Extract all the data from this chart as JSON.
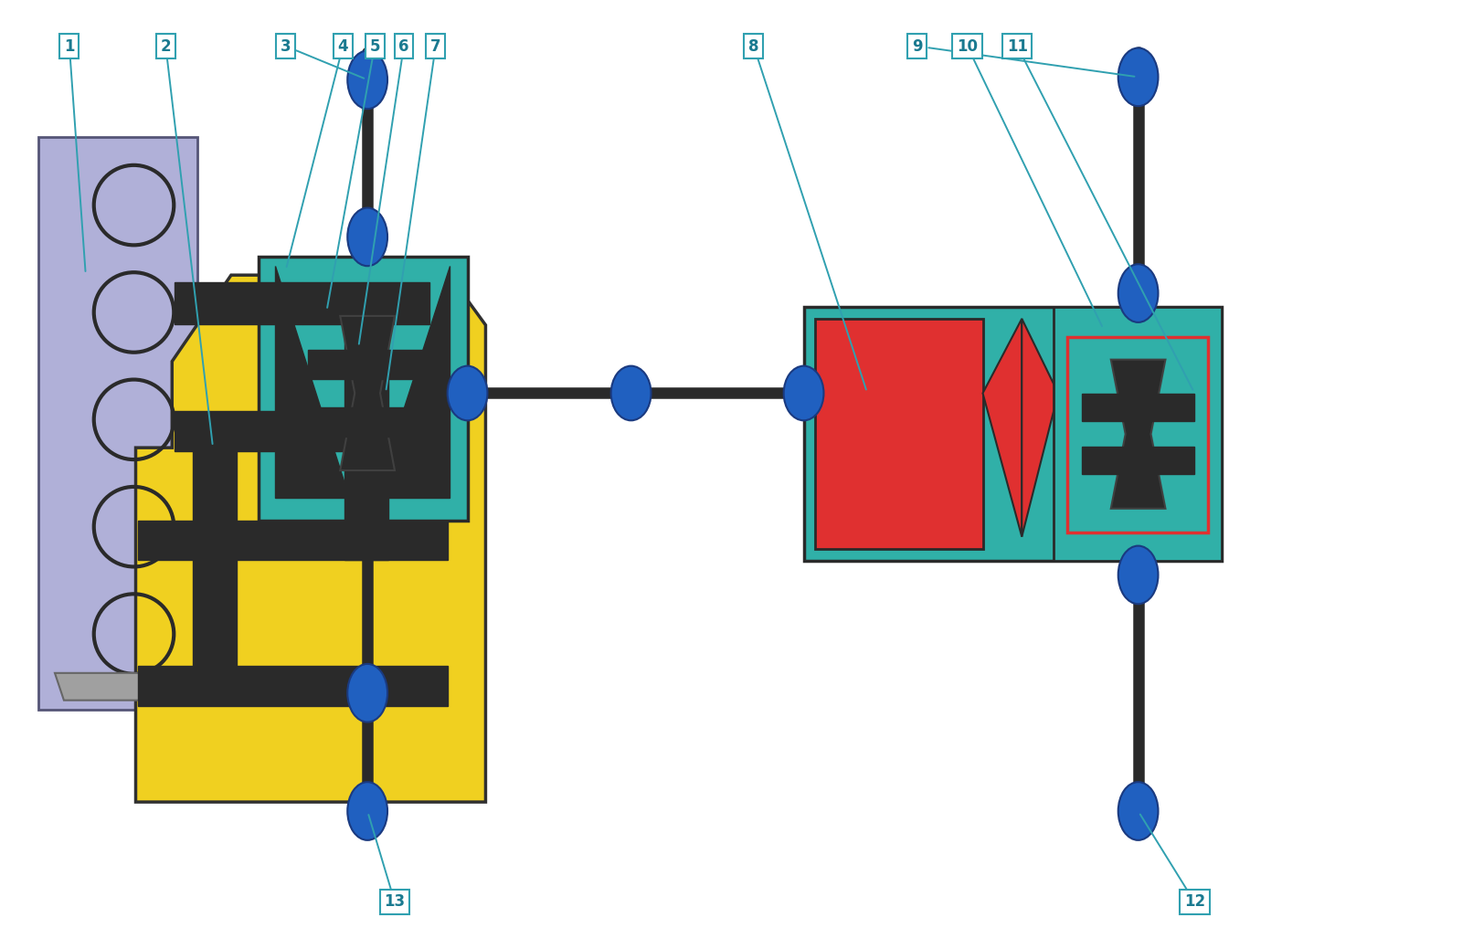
{
  "bg_color": "#ffffff",
  "colors": {
    "purple": "#b0b0d8",
    "yellow": "#f0d020",
    "teal": "#30b0a8",
    "red": "#e03030",
    "blue_node": "#2060c0",
    "dark": "#303030",
    "gray": "#a0a0a0",
    "label_border": "#30a0b0",
    "label_text": "#1a7a90"
  }
}
